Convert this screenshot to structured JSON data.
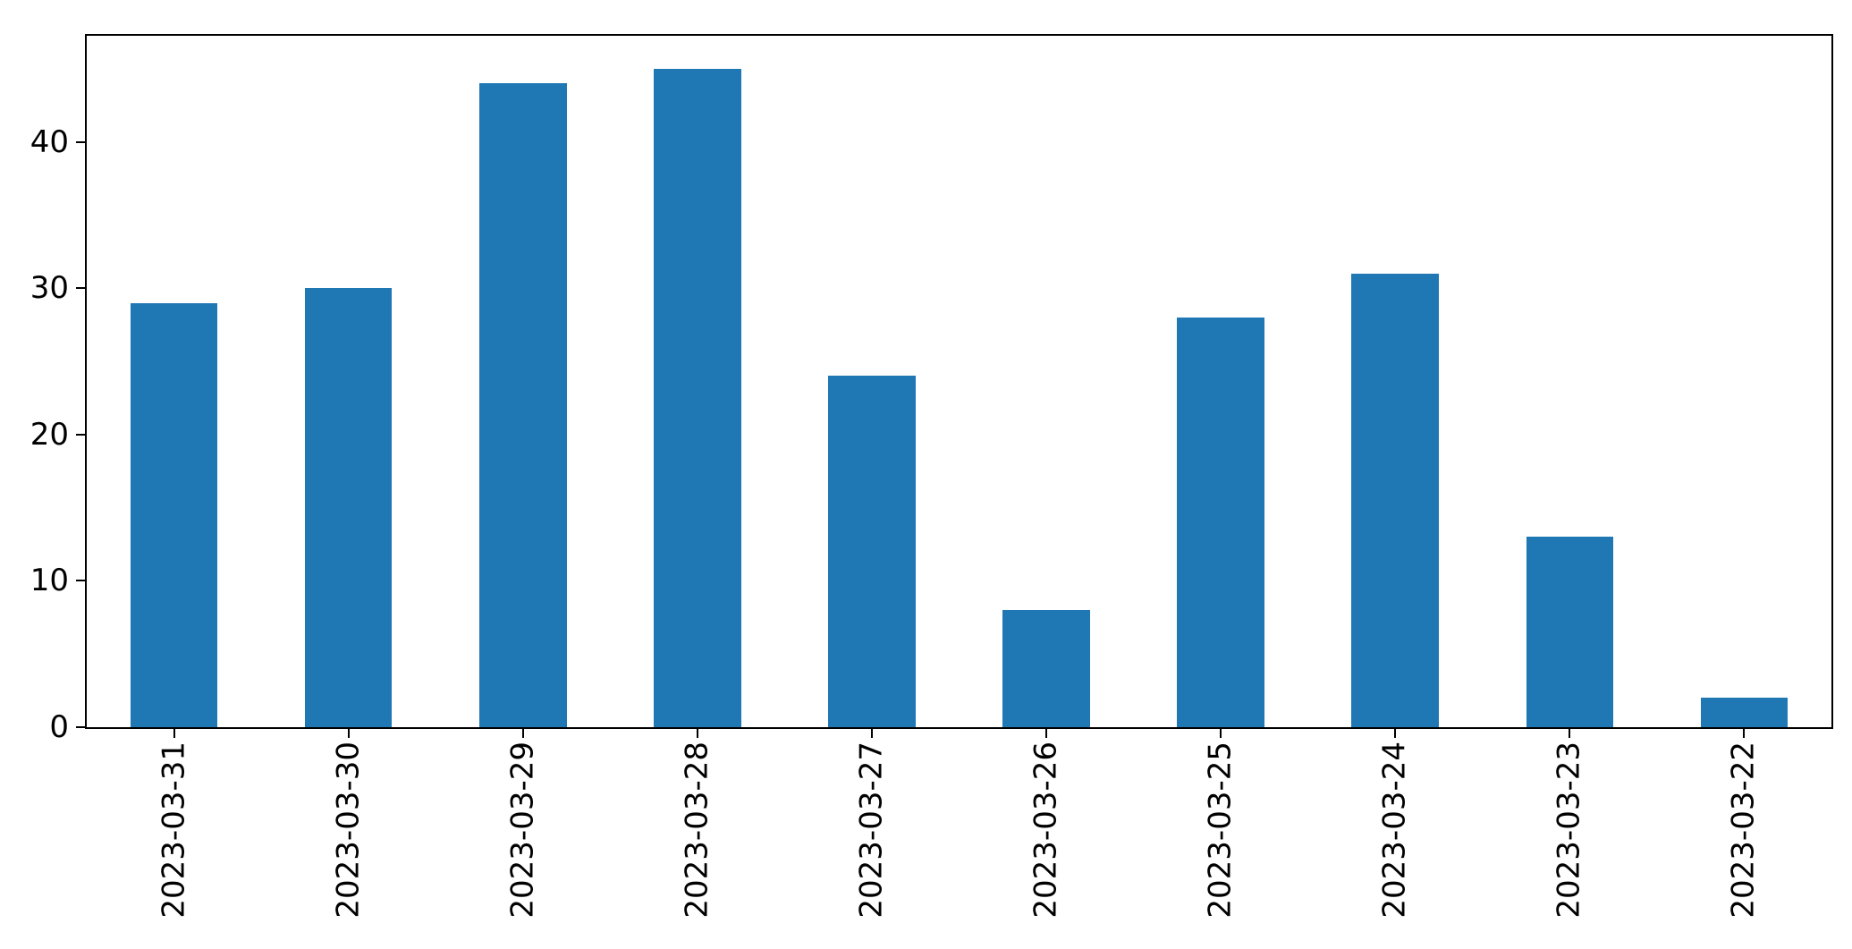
{
  "figure": {
    "background": "#ffffff"
  },
  "chart_data": {
    "type": "bar",
    "categories": [
      "2023-03-31",
      "2023-03-30",
      "2023-03-29",
      "2023-03-28",
      "2023-03-27",
      "2023-03-26",
      "2023-03-25",
      "2023-03-24",
      "2023-03-23",
      "2023-03-22"
    ],
    "values": [
      29,
      30,
      44,
      45,
      24,
      8,
      28,
      31,
      13,
      2
    ],
    "title": "",
    "xlabel": "",
    "ylabel": "",
    "ylim": [
      0,
      47.25
    ],
    "yticks": [
      0,
      10,
      20,
      30,
      40
    ],
    "bar_color": "#1f77b4",
    "axis_color": "#000000",
    "tick_label_color": "#000000",
    "x_tick_rotation_deg": 90,
    "bar_width_fraction": 0.5,
    "grid": false,
    "legend": null
  }
}
